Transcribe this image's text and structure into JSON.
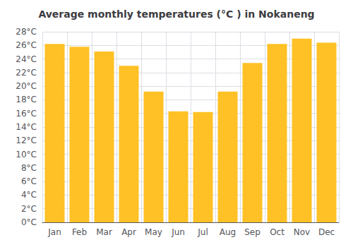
{
  "chart_data": {
    "type": "bar",
    "title": "Average monthly temperatures (°C ) in Nokaneng",
    "categories": [
      "Jan",
      "Feb",
      "Mar",
      "Apr",
      "May",
      "Jun",
      "Jul",
      "Aug",
      "Sep",
      "Oct",
      "Nov",
      "Dec"
    ],
    "values": [
      26.2,
      25.8,
      25.1,
      23.0,
      19.2,
      16.3,
      16.2,
      19.2,
      23.4,
      26.2,
      27.0,
      26.4
    ],
    "color": "#FFC125",
    "ylim": [
      0,
      28
    ],
    "yticks": [
      {
        "value": 0,
        "label": "0°C"
      },
      {
        "value": 2,
        "label": "2°C"
      },
      {
        "value": 4,
        "label": "4°C"
      },
      {
        "value": 6,
        "label": "6°C"
      },
      {
        "value": 8,
        "label": "8°C"
      },
      {
        "value": 10,
        "label": "10°C"
      },
      {
        "value": 12,
        "label": "12°C"
      },
      {
        "value": 14,
        "label": "14°C"
      },
      {
        "value": 16,
        "label": "16°C"
      },
      {
        "value": 18,
        "label": "18°C"
      },
      {
        "value": 20,
        "label": "20°C"
      },
      {
        "value": 22,
        "label": "22°C"
      },
      {
        "value": 24,
        "label": "24°C"
      },
      {
        "value": 26,
        "label": "26°C"
      },
      {
        "value": 28,
        "label": "28°C"
      }
    ],
    "grid": true
  }
}
